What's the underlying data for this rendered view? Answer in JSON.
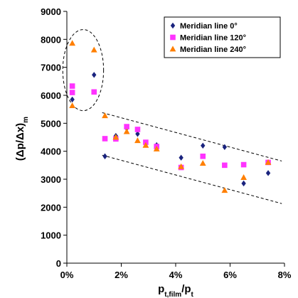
{
  "chart_data": {
    "type": "scatter",
    "title": "",
    "xlabel": {
      "main": "p",
      "sub1": "t,film",
      "slash": "/p",
      "sub2": "t"
    },
    "ylabel": {
      "main": "(Δp/Δx)",
      "sub": "m"
    },
    "xlim": [
      0,
      8
    ],
    "ylim": [
      0,
      9000
    ],
    "x_unit": "%",
    "xticks": [
      0,
      2,
      4,
      6,
      8
    ],
    "xtick_labels": [
      "0%",
      "2%",
      "4%",
      "6%",
      "8%"
    ],
    "yticks": [
      0,
      1000,
      2000,
      3000,
      4000,
      5000,
      6000,
      7000,
      8000,
      9000
    ],
    "ytick_labels": [
      "0",
      "1000",
      "2000",
      "3000",
      "4000",
      "5000",
      "6000",
      "7000",
      "8000",
      "9000"
    ],
    "grid": false,
    "legend_position": "top-right",
    "series": [
      {
        "name": "Meridian line 0°",
        "marker": "diamond",
        "color": "#1a237e",
        "points": [
          [
            0.2,
            5850
          ],
          [
            1.0,
            6730
          ],
          [
            1.4,
            3820
          ],
          [
            1.8,
            4550
          ],
          [
            2.2,
            4820
          ],
          [
            2.6,
            4620
          ],
          [
            2.9,
            4300
          ],
          [
            3.3,
            4220
          ],
          [
            4.2,
            3770
          ],
          [
            5.0,
            4200
          ],
          [
            5.8,
            4150
          ],
          [
            6.5,
            2850
          ],
          [
            7.4,
            3220
          ]
        ]
      },
      {
        "name": "Meridian line 120°",
        "marker": "square",
        "color": "#ff33ff",
        "points": [
          [
            0.2,
            6330
          ],
          [
            0.2,
            6100
          ],
          [
            1.0,
            6120
          ],
          [
            1.4,
            4450
          ],
          [
            1.8,
            4440
          ],
          [
            2.2,
            4880
          ],
          [
            2.6,
            4780
          ],
          [
            2.9,
            4320
          ],
          [
            3.3,
            4170
          ],
          [
            4.2,
            3420
          ],
          [
            5.0,
            3820
          ],
          [
            5.8,
            3500
          ],
          [
            6.5,
            3520
          ],
          [
            7.4,
            3600
          ]
        ]
      },
      {
        "name": "Meridian line 240°",
        "marker": "triangle",
        "color": "#ff7f00",
        "points": [
          [
            0.2,
            7860
          ],
          [
            0.2,
            5630
          ],
          [
            1.0,
            7620
          ],
          [
            1.4,
            5270
          ],
          [
            1.8,
            4500
          ],
          [
            2.2,
            4700
          ],
          [
            2.6,
            4380
          ],
          [
            2.9,
            4210
          ],
          [
            3.3,
            4080
          ],
          [
            4.2,
            3450
          ],
          [
            5.0,
            3570
          ],
          [
            5.8,
            2600
          ],
          [
            6.5,
            3060
          ],
          [
            7.4,
            3600
          ]
        ]
      }
    ],
    "annotations": [
      {
        "type": "ellipse-dashed",
        "center": [
          0.6,
          6900
        ],
        "radius_x": 0.75,
        "radius_y": 1450
      },
      {
        "type": "line-dashed",
        "from": [
          1.3,
          5380
        ],
        "to": [
          7.9,
          3650
        ]
      },
      {
        "type": "line-dashed",
        "from": [
          1.3,
          3860
        ],
        "to": [
          7.9,
          2130
        ]
      }
    ]
  }
}
